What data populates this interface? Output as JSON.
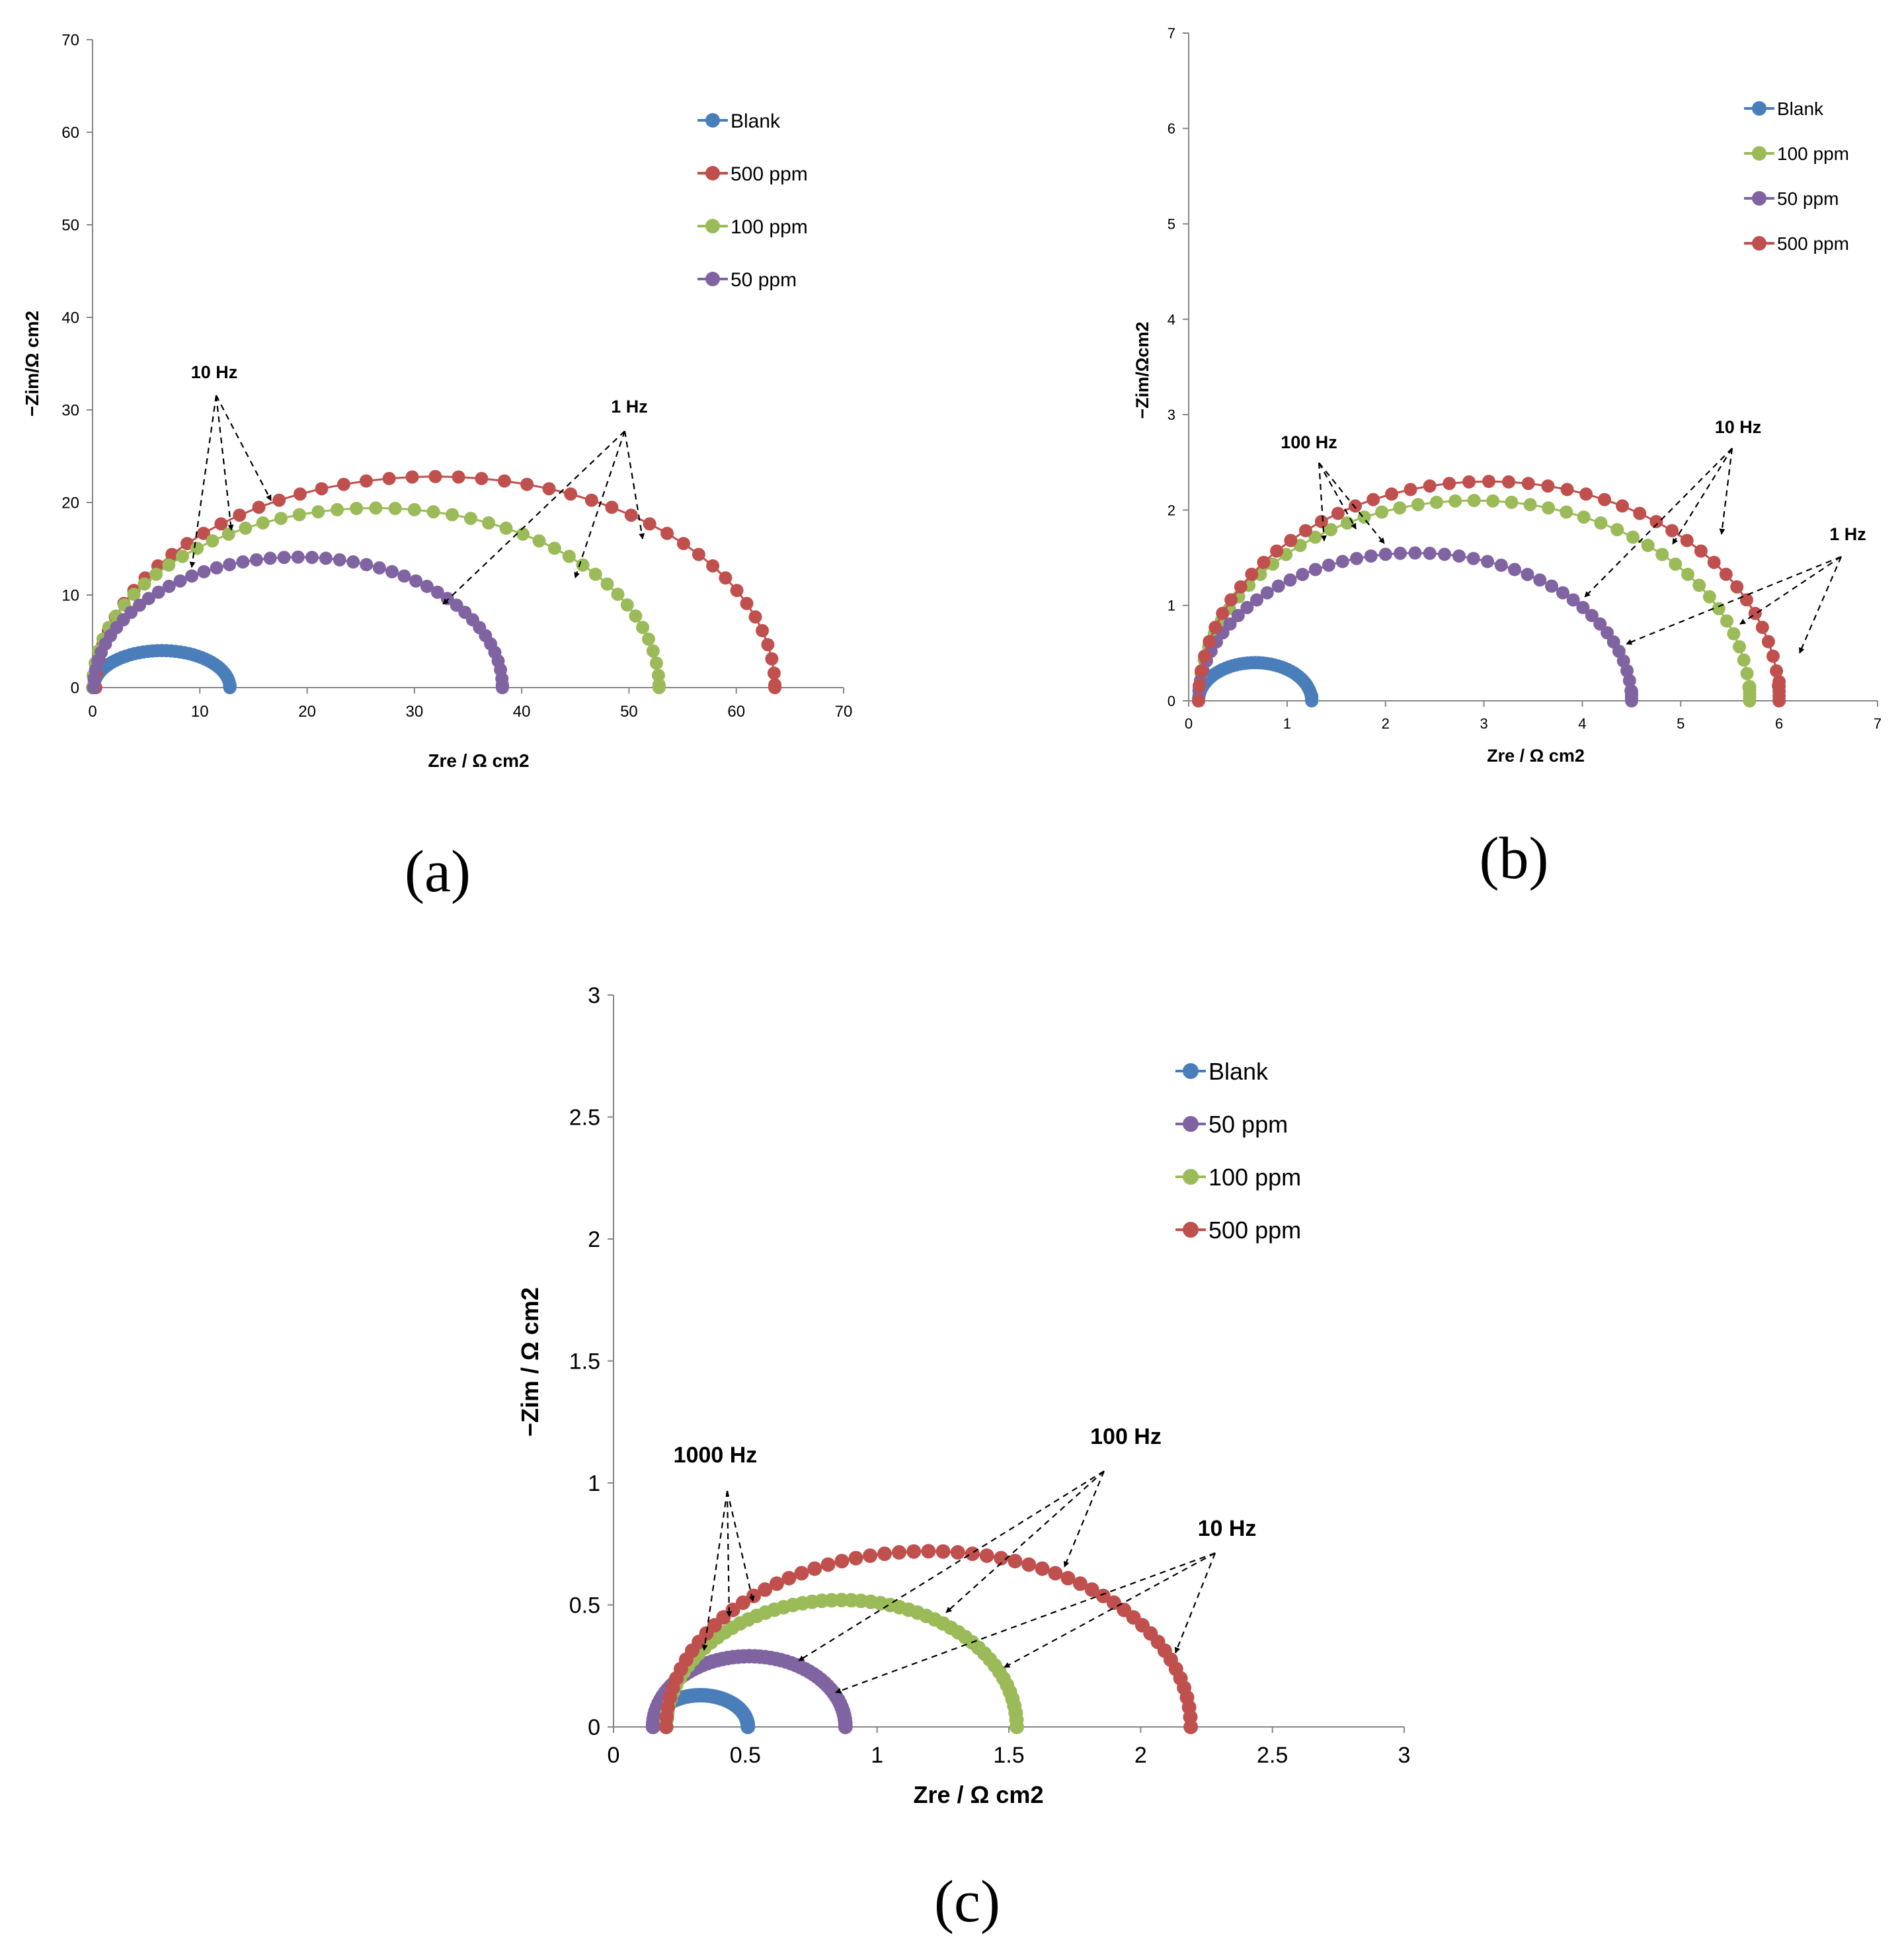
{
  "colors": {
    "Blank": "#4a7ebb",
    "500 ppm": "#c0504d",
    "100 ppm": "#9bbb59",
    "50 ppm": "#8064a2"
  },
  "chart_data": [
    {
      "type": "scatter",
      "panel": "(a)",
      "xlabel": "Zre / Ω cm2",
      "ylabel": "−Zim/Ω cm2",
      "xlim": [
        0,
        70
      ],
      "ylim": [
        0,
        70
      ],
      "xticks": [
        "0",
        "10",
        "20",
        "30",
        "40",
        "50",
        "60",
        "70"
      ],
      "yticks": [
        "0",
        "10",
        "20",
        "30",
        "40",
        "50",
        "60",
        "70"
      ],
      "legend_order": [
        "Blank",
        "500 ppm",
        "100 ppm",
        "50 ppm"
      ],
      "annotations": [
        "10 Hz",
        "1 Hz"
      ],
      "series": [
        {
          "name": "Blank",
          "arc": {
            "r0": 0.1,
            "r1": 12.8,
            "peak": 4.0,
            "tail": 0.3
          }
        },
        {
          "name": "500 ppm",
          "arc": {
            "r0": 0.3,
            "r1": 63.6,
            "peak": 22.8,
            "tail": 0.3
          }
        },
        {
          "name": "100 ppm",
          "arc": {
            "r0": 0.0,
            "r1": 52.8,
            "peak": 19.4,
            "tail": 0.3
          }
        },
        {
          "name": "50 ppm",
          "arc": {
            "r0": 0.1,
            "r1": 38.2,
            "peak": 14.1,
            "tail": 0.3
          }
        }
      ]
    },
    {
      "type": "scatter",
      "panel": "(b)",
      "xlabel": "Zre / Ω cm2",
      "ylabel": "−Zim/Ωcm2",
      "xlim": [
        0,
        7
      ],
      "ylim": [
        0,
        7
      ],
      "xticks": [
        "0",
        "1",
        "2",
        "3",
        "4",
        "5",
        "6",
        "7"
      ],
      "yticks": [
        "0",
        "1",
        "2",
        "3",
        "4",
        "5",
        "6",
        "7"
      ],
      "legend_order": [
        "Blank",
        "100 ppm",
        "50 ppm",
        "500 ppm"
      ],
      "annotations": [
        "100 Hz",
        "10 Hz",
        "1 Hz"
      ],
      "series": [
        {
          "name": "Blank",
          "arc": {
            "r0": 0.1,
            "r1": 1.25,
            "peak": 0.4,
            "tail": 0.05
          }
        },
        {
          "name": "100 ppm",
          "arc": {
            "r0": 0.1,
            "r1": 5.7,
            "peak": 2.1,
            "tail": 0.15
          }
        },
        {
          "name": "50 ppm",
          "arc": {
            "r0": 0.1,
            "r1": 4.5,
            "peak": 1.55,
            "tail": 0.1
          }
        },
        {
          "name": "500 ppm",
          "arc": {
            "r0": 0.1,
            "r1": 6.0,
            "peak": 2.3,
            "tail": 0.2
          }
        }
      ]
    },
    {
      "type": "scatter",
      "panel": "(c)",
      "xlabel": "Zre / Ω cm2",
      "ylabel": "−Zim / Ω cm2",
      "xlim": [
        0,
        3
      ],
      "ylim": [
        0,
        3
      ],
      "xticks": [
        "0",
        "0.5",
        "1",
        "1.5",
        "2",
        "2.5",
        "3"
      ],
      "yticks": [
        "0",
        "0.5",
        "1",
        "1.5",
        "2",
        "2.5",
        "3"
      ],
      "legend_order": [
        "Blank",
        "50 ppm",
        "100 ppm",
        "500 ppm"
      ],
      "annotations": [
        "1000 Hz",
        "100 Hz",
        "10 Hz"
      ],
      "series": [
        {
          "name": "Blank",
          "arc": {
            "r0": 0.15,
            "r1": 0.51,
            "peak": 0.13,
            "tail": 0.0
          }
        },
        {
          "name": "50 ppm",
          "arc": {
            "r0": 0.15,
            "r1": 0.88,
            "peak": 0.29,
            "tail": 0.0
          }
        },
        {
          "name": "100 ppm",
          "arc": {
            "r0": 0.2,
            "r1": 1.53,
            "peak": 0.52,
            "tail": 0.0
          }
        },
        {
          "name": "500 ppm",
          "arc": {
            "r0": 0.2,
            "r1": 2.19,
            "peak": 0.72,
            "tail": 0.0
          }
        }
      ]
    }
  ]
}
